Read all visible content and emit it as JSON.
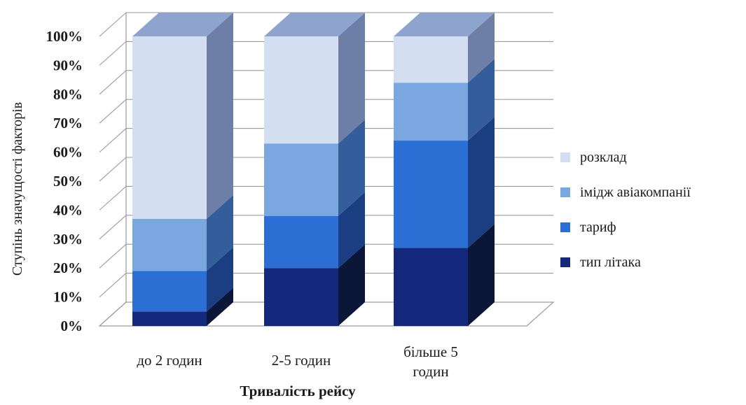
{
  "chart_data": {
    "type": "bar",
    "stacked": true,
    "normalized_percent": true,
    "three_d": true,
    "title": "",
    "xlabel": "Тривалість рейсу",
    "ylabel": "Ступінь значущості факторів",
    "ylim": [
      0,
      100
    ],
    "yticks": [
      "0%",
      "10%",
      "20%",
      "30%",
      "40%",
      "50%",
      "60%",
      "70%",
      "80%",
      "90%",
      "100%"
    ],
    "grid": true,
    "legend_position": "right",
    "categories": [
      "до 2 годин",
      "2-5 годин",
      "більше 5 годин"
    ],
    "series": [
      {
        "name": "тип літака",
        "values": [
          5,
          20,
          27
        ]
      },
      {
        "name": "тариф",
        "values": [
          14,
          18,
          37
        ]
      },
      {
        "name": "імідж авіакомпанії",
        "values": [
          18,
          25,
          20
        ]
      },
      {
        "name": "розклад",
        "values": [
          63,
          37,
          16
        ]
      }
    ],
    "colors": {
      "тип літака": "#14287c",
      "тариф": "#2c6fd4",
      "імідж авіакомпанії": "#7aa7e0",
      "розклад": "#d4def1"
    },
    "side_colors": {
      "тип літака": "#0c1638",
      "тариф": "#1b3e82",
      "імідж авіакомпанії": "#345d9c",
      "розклад": "#6d7fa6"
    },
    "top_color": "#8ea4cf",
    "grid_color": "#9a9a9a"
  }
}
